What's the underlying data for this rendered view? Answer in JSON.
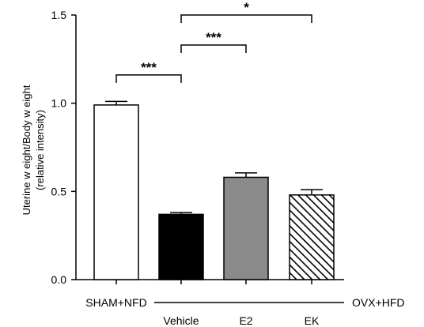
{
  "chart_data": {
    "type": "bar",
    "categories": [
      "SHAM+NFD",
      "Vehicle",
      "E2",
      "EK"
    ],
    "values": [
      0.99,
      0.37,
      0.58,
      0.48
    ],
    "errors": [
      0.02,
      0.01,
      0.025,
      0.03
    ],
    "fills": [
      "white",
      "black",
      "gray",
      "hatch"
    ],
    "ylabel": "Uterine w eight/Body w eight",
    "ylabel2": "(relative intensity)",
    "ylim": [
      0.0,
      1.5
    ],
    "yticks": [
      "0.0",
      "0.5",
      "1.0",
      "1.5"
    ],
    "group_label": "OVX+HFD",
    "significance": [
      {
        "from": 0,
        "to": 1,
        "label": "***",
        "level": 1.16
      },
      {
        "from": 1,
        "to": 2,
        "label": "***",
        "level": 1.33
      },
      {
        "from": 1,
        "to": 3,
        "label": "*",
        "level": 1.5
      }
    ],
    "colors": {
      "white": "#ffffff",
      "black": "#000000",
      "gray": "#8a8a8a",
      "stroke": "#000000"
    }
  }
}
